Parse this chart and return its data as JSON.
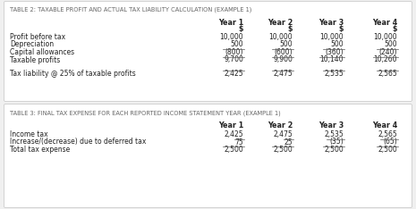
{
  "bg_color": "#f0f0f0",
  "table_bg": "#ffffff",
  "border_color": "#cccccc",
  "title_color": "#666666",
  "text_color": "#222222",
  "line_color": "#555555",
  "table1_title": "TABLE 2: TAXABLE PROFIT AND ACTUAL TAX LIABILITY CALCULATION (EXAMPLE 1)",
  "table2_title": "TABLE 3: FINAL TAX EXPENSE FOR EACH REPORTED INCOME STATEMENT YEAR (EXAMPLE 1)",
  "col_headers_line1": [
    "Year 1",
    "Year 2",
    "Year 3",
    "Year 4"
  ],
  "col_headers_line2": [
    "$",
    "$",
    "$",
    "$"
  ],
  "table1_rows": [
    [
      "Profit before tax",
      "10,000",
      "10,000",
      "10,000",
      "10,000"
    ],
    [
      "Depreciation",
      "500",
      "500",
      "500",
      "500"
    ],
    [
      "Capital allowances",
      "(800)",
      "(600)",
      "(360)",
      "(240)"
    ],
    [
      "Taxable profits",
      "9,700",
      "9,900",
      "10,140",
      "10,260"
    ]
  ],
  "table1_final_row": [
    "Tax liability @ 25% of taxable profits",
    "2,425",
    "2,475",
    "2,535",
    "2,565"
  ],
  "table2_rows": [
    [
      "Income tax",
      "2,425",
      "2,475",
      "2,535",
      "2,565"
    ],
    [
      "Increase/(decrease) due to deferred tax",
      "75",
      "25",
      "(35)",
      "(65)"
    ],
    [
      "Total tax expense",
      "2,500",
      "2,500",
      "2,500",
      "2,500"
    ]
  ],
  "title_fontsize": 4.8,
  "col_header_fontsize": 5.8,
  "cell_fontsize": 5.5
}
